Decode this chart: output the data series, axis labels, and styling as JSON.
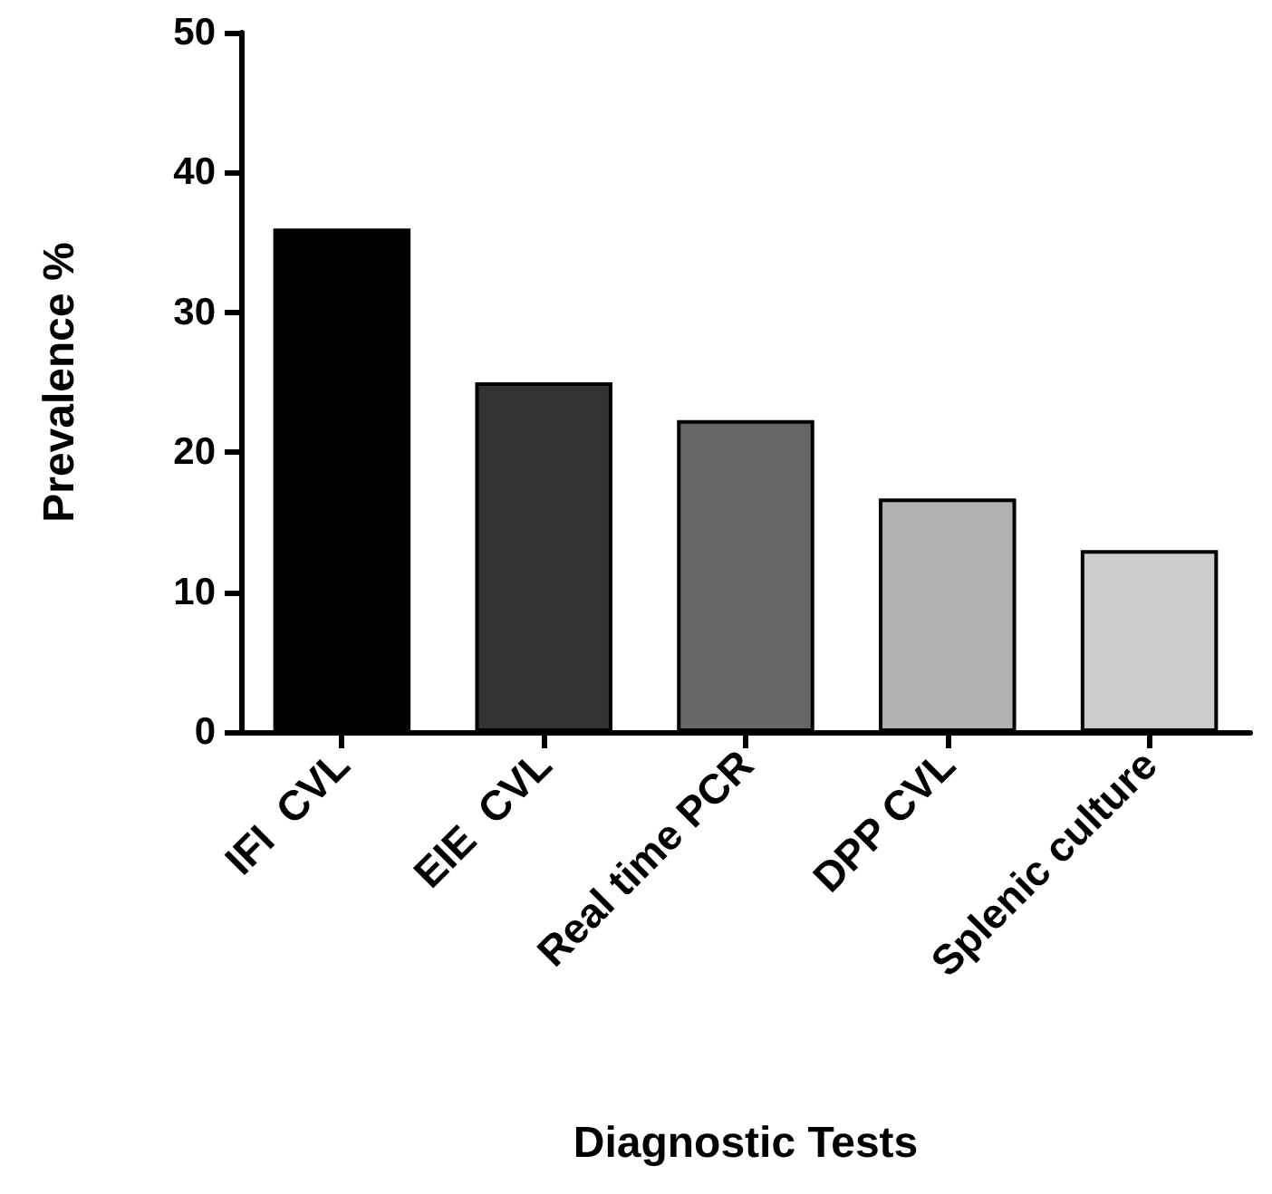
{
  "chart_data": {
    "type": "bar",
    "xlabel": "Diagnostic Tests",
    "ylabel": "Prevalence %",
    "categories": [
      "IFI  CVL",
      "EIE  CVL",
      "Real time PCR",
      "DPP CVL",
      "Splenic culture"
    ],
    "values": [
      36,
      25,
      22.3,
      16.7,
      13
    ],
    "colors": [
      "#000000",
      "#333333",
      "#666666",
      "#b2b2b2",
      "#cccccc"
    ],
    "ylim": [
      0,
      50
    ],
    "yticks": [
      0,
      10,
      20,
      30,
      40,
      50
    ],
    "grid": false
  }
}
